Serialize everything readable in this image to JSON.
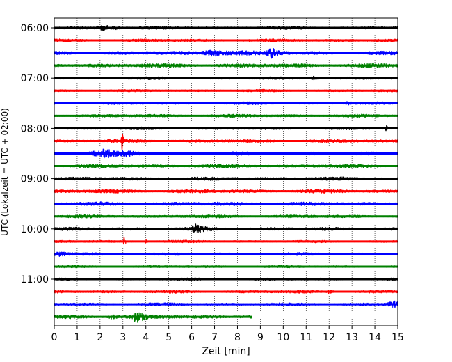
{
  "chart_data": {
    "type": "line",
    "title": "",
    "xlabel": "Zeit  [min]",
    "ylabel": "UTC (Lokalzeit = UTC + 02:00)",
    "xlim": [
      0,
      15
    ],
    "x_ticks": [
      "0",
      "1",
      "2",
      "3",
      "4",
      "5",
      "6",
      "7",
      "8",
      "9",
      "10",
      "11",
      "12",
      "13",
      "14",
      "15"
    ],
    "y_ticks": [
      "06:00",
      "07:00",
      "08:00",
      "09:00",
      "10:00",
      "11:00"
    ],
    "grid": "vertical dotted at each minute",
    "trace_interval_minutes": 15,
    "color_cycle": [
      "#000000",
      "#ff0000",
      "#0000ff",
      "#008000"
    ],
    "traces": [
      {
        "start": "06:00",
        "color": "black",
        "end_min": 15,
        "amp": 1.0,
        "events": [
          {
            "t": 2.2,
            "amp": 3.0,
            "dur": 0.4
          },
          {
            "t": 2.7,
            "amp": 2.0,
            "dur": 0.3
          }
        ]
      },
      {
        "start": "06:15",
        "color": "red",
        "end_min": 15,
        "amp": 1.0,
        "events": []
      },
      {
        "start": "06:30",
        "color": "blue",
        "end_min": 15,
        "amp": 1.2,
        "events": [
          {
            "t": 7.0,
            "amp": 4.0,
            "dur": 0.6
          },
          {
            "t": 9.5,
            "amp": 2.5,
            "dur": 0.3
          }
        ]
      },
      {
        "start": "06:45",
        "color": "green",
        "end_min": 15,
        "amp": 1.3,
        "events": []
      },
      {
        "start": "07:00",
        "color": "black",
        "end_min": 15,
        "amp": 0.9,
        "events": [
          {
            "t": 11.3,
            "amp": 3.0,
            "dur": 0.2
          }
        ]
      },
      {
        "start": "07:15",
        "color": "red",
        "end_min": 15,
        "amp": 0.8,
        "events": []
      },
      {
        "start": "07:30",
        "color": "blue",
        "end_min": 15,
        "amp": 0.9,
        "events": [
          {
            "t": 12.8,
            "amp": 2.0,
            "dur": 0.1
          }
        ]
      },
      {
        "start": "07:45",
        "color": "green",
        "end_min": 15,
        "amp": 1.0,
        "events": []
      },
      {
        "start": "08:00",
        "color": "black",
        "end_min": 15,
        "amp": 0.9,
        "events": [
          {
            "t": 14.5,
            "amp": 3.5,
            "dur": 0.05
          }
        ]
      },
      {
        "start": "08:15",
        "color": "red",
        "end_min": 15,
        "amp": 1.0,
        "events": [
          {
            "t": 2.95,
            "amp": 9.0,
            "dur": 0.04
          }
        ]
      },
      {
        "start": "08:30",
        "color": "blue",
        "end_min": 15,
        "amp": 1.1,
        "events": [
          {
            "t": 2.2,
            "amp": 1.8,
            "dur": 0.8
          },
          {
            "t": 3.2,
            "amp": 1.8,
            "dur": 0.4
          }
        ]
      },
      {
        "start": "08:45",
        "color": "green",
        "end_min": 15,
        "amp": 1.1,
        "events": []
      },
      {
        "start": "09:00",
        "color": "black",
        "end_min": 15,
        "amp": 1.1,
        "events": []
      },
      {
        "start": "09:15",
        "color": "red",
        "end_min": 15,
        "amp": 1.2,
        "events": []
      },
      {
        "start": "09:30",
        "color": "blue",
        "end_min": 15,
        "amp": 1.2,
        "events": []
      },
      {
        "start": "09:45",
        "color": "green",
        "end_min": 15,
        "amp": 1.0,
        "events": []
      },
      {
        "start": "10:00",
        "color": "black",
        "end_min": 15,
        "amp": 1.1,
        "events": [
          {
            "t": 6.2,
            "amp": 1.8,
            "dur": 0.3
          }
        ]
      },
      {
        "start": "10:15",
        "color": "red",
        "end_min": 15,
        "amp": 0.8,
        "events": [
          {
            "t": 3.05,
            "amp": 8.0,
            "dur": 0.04
          },
          {
            "t": 4.0,
            "amp": 5.0,
            "dur": 0.04
          }
        ]
      },
      {
        "start": "10:30",
        "color": "blue",
        "end_min": 15,
        "amp": 0.9,
        "events": [
          {
            "t": 0.2,
            "amp": 2.0,
            "dur": 0.3
          }
        ]
      },
      {
        "start": "10:45",
        "color": "green",
        "end_min": 15,
        "amp": 0.8,
        "events": []
      },
      {
        "start": "11:00",
        "color": "black",
        "end_min": 15,
        "amp": 0.8,
        "events": []
      },
      {
        "start": "11:15",
        "color": "red",
        "end_min": 15,
        "amp": 1.0,
        "events": [
          {
            "t": 12.0,
            "amp": 2.5,
            "dur": 0.1
          }
        ]
      },
      {
        "start": "11:30",
        "color": "blue",
        "end_min": 15,
        "amp": 1.0,
        "events": [
          {
            "t": 14.8,
            "amp": 2.5,
            "dur": 0.3
          }
        ]
      },
      {
        "start": "11:45",
        "color": "green",
        "end_min": 8.65,
        "amp": 1.3,
        "events": [
          {
            "t": 2.5,
            "amp": 2.0,
            "dur": 0.2
          },
          {
            "t": 3.6,
            "amp": 3.0,
            "dur": 0.2
          }
        ]
      }
    ]
  }
}
